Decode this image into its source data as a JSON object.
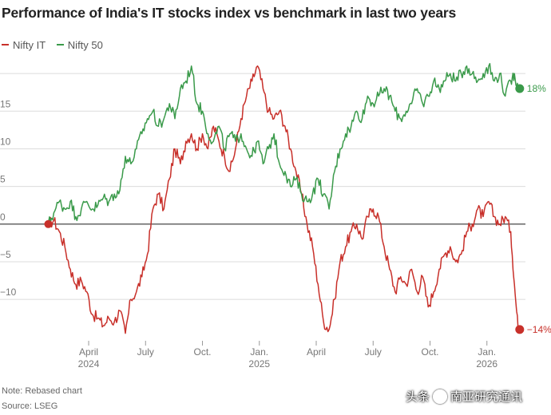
{
  "chart_data": {
    "type": "line",
    "title": "Performance of India's IT stocks index vs benchmark in last two years",
    "ylim": [
      -15.5,
      21.5
    ],
    "xlim": [
      0,
      27.5
    ],
    "y_ticks": [
      {
        "value": 15,
        "label": "15"
      },
      {
        "value": 10,
        "label": "10"
      },
      {
        "value": 5,
        "label": "5"
      },
      {
        "value": 0,
        "label": "0"
      },
      {
        "value": -5,
        "label": "−5"
      },
      {
        "value": -10,
        "label": "−10"
      }
    ],
    "x_ticks": [
      {
        "month": 3.7,
        "label": "April",
        "year": "2024"
      },
      {
        "month": 6.8,
        "label": "July",
        "year": ""
      },
      {
        "month": 9.9,
        "label": "Oct.",
        "year": ""
      },
      {
        "month": 13.0,
        "label": "Jan.",
        "year": "2025"
      },
      {
        "month": 16.1,
        "label": "April",
        "year": ""
      },
      {
        "month": 19.2,
        "label": "July",
        "year": ""
      },
      {
        "month": 22.3,
        "label": "Oct.",
        "year": ""
      },
      {
        "month": 25.4,
        "label": "Jan.",
        "year": "2026"
      }
    ],
    "grid": true,
    "legend": "top-left",
    "series": [
      {
        "name": "Nifty IT",
        "color": "#c8302a",
        "end_label": "−14%",
        "points": [
          [
            1.5,
            0
          ],
          [
            1.8,
            0.5
          ],
          [
            2.1,
            -1
          ],
          [
            2.4,
            -3
          ],
          [
            2.7,
            -6
          ],
          [
            3.0,
            -8
          ],
          [
            3.3,
            -7.5
          ],
          [
            3.6,
            -9
          ],
          [
            3.9,
            -12
          ],
          [
            4.2,
            -12.5
          ],
          [
            4.5,
            -13.5
          ],
          [
            4.8,
            -12.5
          ],
          [
            5.1,
            -13
          ],
          [
            5.4,
            -11.5
          ],
          [
            5.7,
            -14.5
          ],
          [
            6.0,
            -10
          ],
          [
            6.3,
            -9
          ],
          [
            6.6,
            -7
          ],
          [
            6.9,
            -4
          ],
          [
            7.2,
            2
          ],
          [
            7.5,
            4
          ],
          [
            7.8,
            2
          ],
          [
            8.1,
            6
          ],
          [
            8.4,
            10
          ],
          [
            8.7,
            8
          ],
          [
            9.0,
            11
          ],
          [
            9.3,
            12
          ],
          [
            9.6,
            10
          ],
          [
            9.9,
            12
          ],
          [
            10.2,
            10
          ],
          [
            10.5,
            13
          ],
          [
            10.8,
            11
          ],
          [
            11.1,
            9
          ],
          [
            11.4,
            7
          ],
          [
            11.7,
            10
          ],
          [
            12.0,
            14
          ],
          [
            12.3,
            17
          ],
          [
            12.6,
            19
          ],
          [
            12.9,
            21
          ],
          [
            13.2,
            18
          ],
          [
            13.5,
            15
          ],
          [
            13.8,
            14
          ],
          [
            14.1,
            15
          ],
          [
            14.4,
            13
          ],
          [
            14.7,
            10
          ],
          [
            15.0,
            7
          ],
          [
            15.3,
            4
          ],
          [
            15.6,
            0
          ],
          [
            15.9,
            -3
          ],
          [
            16.2,
            -8
          ],
          [
            16.5,
            -13
          ],
          [
            16.8,
            -14
          ],
          [
            17.1,
            -10
          ],
          [
            17.4,
            -5
          ],
          [
            17.7,
            -3
          ],
          [
            18.0,
            -1
          ],
          [
            18.3,
            0
          ],
          [
            18.6,
            -2
          ],
          [
            18.9,
            1
          ],
          [
            19.2,
            2
          ],
          [
            19.5,
            1
          ],
          [
            19.8,
            -3
          ],
          [
            20.1,
            -6
          ],
          [
            20.4,
            -9
          ],
          [
            20.7,
            -7
          ],
          [
            21.0,
            -8
          ],
          [
            21.3,
            -6
          ],
          [
            21.6,
            -9
          ],
          [
            21.9,
            -7
          ],
          [
            22.2,
            -11
          ],
          [
            22.5,
            -9
          ],
          [
            22.8,
            -6
          ],
          [
            23.1,
            -4
          ],
          [
            23.4,
            -3
          ],
          [
            23.7,
            -5
          ],
          [
            24.0,
            -4
          ],
          [
            24.3,
            -1
          ],
          [
            24.6,
            0
          ],
          [
            24.9,
            2
          ],
          [
            25.2,
            1
          ],
          [
            25.5,
            3
          ],
          [
            25.8,
            1
          ],
          [
            26.1,
            0
          ],
          [
            26.4,
            1
          ],
          [
            26.7,
            -1
          ],
          [
            26.9,
            -8
          ],
          [
            27.1,
            -14
          ]
        ]
      },
      {
        "name": "Nifty 50",
        "color": "#3a9a4a",
        "end_label": "18%",
        "points": [
          [
            1.5,
            0
          ],
          [
            1.8,
            1.5
          ],
          [
            2.1,
            3
          ],
          [
            2.4,
            2
          ],
          [
            2.7,
            3
          ],
          [
            3.0,
            1
          ],
          [
            3.3,
            2
          ],
          [
            3.6,
            3
          ],
          [
            3.9,
            2
          ],
          [
            4.2,
            2.5
          ],
          [
            4.5,
            3.5
          ],
          [
            4.8,
            3
          ],
          [
            5.1,
            4
          ],
          [
            5.4,
            4.5
          ],
          [
            5.7,
            9
          ],
          [
            6.0,
            8
          ],
          [
            6.3,
            10
          ],
          [
            6.6,
            12
          ],
          [
            6.9,
            14
          ],
          [
            7.2,
            15
          ],
          [
            7.5,
            13
          ],
          [
            7.8,
            14
          ],
          [
            8.1,
            16
          ],
          [
            8.4,
            14
          ],
          [
            8.7,
            18
          ],
          [
            9.0,
            19
          ],
          [
            9.3,
            21
          ],
          [
            9.6,
            16
          ],
          [
            9.9,
            15
          ],
          [
            10.2,
            12
          ],
          [
            10.5,
            11
          ],
          [
            10.8,
            13
          ],
          [
            11.1,
            10
          ],
          [
            11.4,
            12
          ],
          [
            11.7,
            11
          ],
          [
            12.0,
            12
          ],
          [
            12.3,
            10
          ],
          [
            12.6,
            9
          ],
          [
            12.9,
            11
          ],
          [
            13.2,
            8
          ],
          [
            13.5,
            10
          ],
          [
            13.8,
            12
          ],
          [
            14.1,
            8
          ],
          [
            14.4,
            7
          ],
          [
            14.7,
            5
          ],
          [
            15.0,
            6
          ],
          [
            15.3,
            4
          ],
          [
            15.6,
            3
          ],
          [
            15.9,
            4
          ],
          [
            16.2,
            6
          ],
          [
            16.5,
            4
          ],
          [
            16.8,
            2
          ],
          [
            17.1,
            7
          ],
          [
            17.4,
            10
          ],
          [
            17.7,
            12
          ],
          [
            18.0,
            13
          ],
          [
            18.3,
            15
          ],
          [
            18.6,
            14
          ],
          [
            18.9,
            17
          ],
          [
            19.2,
            16
          ],
          [
            19.5,
            17
          ],
          [
            19.8,
            18
          ],
          [
            20.1,
            17
          ],
          [
            20.4,
            15
          ],
          [
            20.7,
            14
          ],
          [
            21.0,
            15
          ],
          [
            21.3,
            16
          ],
          [
            21.6,
            18
          ],
          [
            21.9,
            16
          ],
          [
            22.2,
            17
          ],
          [
            22.5,
            19
          ],
          [
            22.8,
            18
          ],
          [
            23.1,
            19
          ],
          [
            23.4,
            20
          ],
          [
            23.7,
            19
          ],
          [
            24.0,
            20
          ],
          [
            24.3,
            21
          ],
          [
            24.6,
            20
          ],
          [
            24.9,
            19
          ],
          [
            25.2,
            20
          ],
          [
            25.5,
            21
          ],
          [
            25.8,
            19
          ],
          [
            26.1,
            20
          ],
          [
            26.4,
            17
          ],
          [
            26.7,
            19
          ],
          [
            26.9,
            20
          ],
          [
            27.1,
            18
          ]
        ]
      }
    ]
  },
  "footer": {
    "note": "Note: Rebased chart",
    "source": "Source: LSEG"
  },
  "watermark": {
    "prefix": "头条",
    "text": "南亚研究通讯"
  }
}
